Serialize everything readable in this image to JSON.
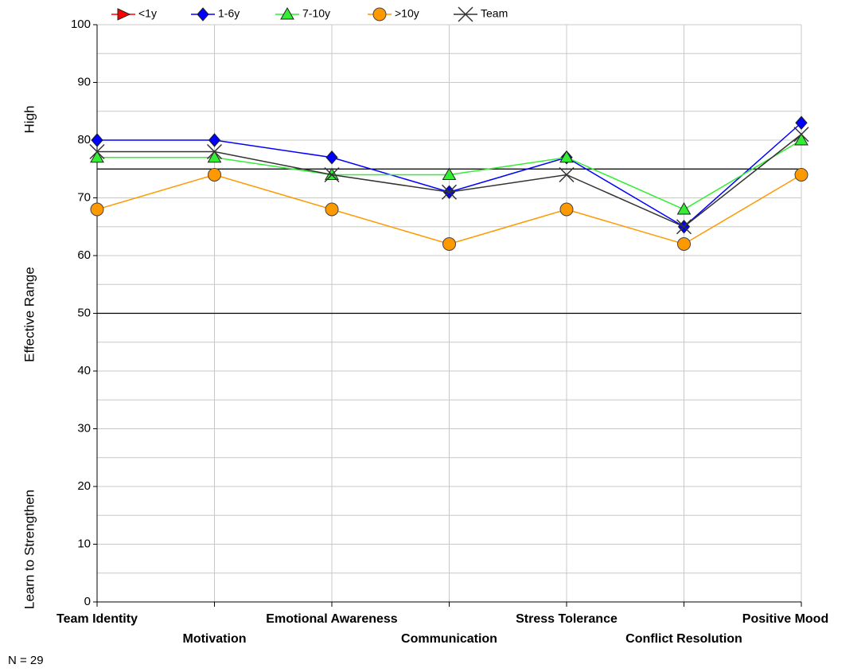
{
  "chart_data": {
    "type": "line",
    "categories": [
      "Team Identity",
      "Motivation",
      "Emotional Awareness",
      "Communication",
      "Stress Tolerance",
      "Conflict Resolution",
      "Positive Mood"
    ],
    "series": [
      {
        "name": "<1y",
        "color": "#ff0000",
        "marker": "triangle-right",
        "values": [
          null,
          null,
          null,
          null,
          null,
          null,
          null
        ]
      },
      {
        "name": "1-6y",
        "color": "#0000ff",
        "marker": "diamond",
        "values": [
          80,
          80,
          77,
          71,
          77,
          65,
          83
        ]
      },
      {
        "name": "7-10y",
        "color": "#33ee33",
        "marker": "triangle",
        "values": [
          77,
          77,
          74,
          74,
          77,
          68,
          80
        ]
      },
      {
        "name": ">10y",
        "color": "#ff9900",
        "marker": "circle",
        "values": [
          68,
          74,
          68,
          62,
          68,
          62,
          74
        ]
      },
      {
        "name": "Team",
        "color": "#333333",
        "marker": "x",
        "values": [
          78,
          78,
          74,
          71,
          74,
          65,
          81
        ]
      }
    ],
    "ylim": [
      0,
      100
    ],
    "yticks": [
      0,
      10,
      20,
      30,
      40,
      50,
      60,
      70,
      80,
      90,
      100
    ],
    "minor_yticks": [
      5,
      15,
      25,
      35,
      45,
      55,
      65,
      75,
      85,
      95
    ],
    "reference_lines": [
      75,
      50
    ],
    "y_band_labels": [
      "High",
      "Effective Range",
      "Learn to Strengthen"
    ],
    "grid": true,
    "legend": "top",
    "note": "N = 29"
  }
}
